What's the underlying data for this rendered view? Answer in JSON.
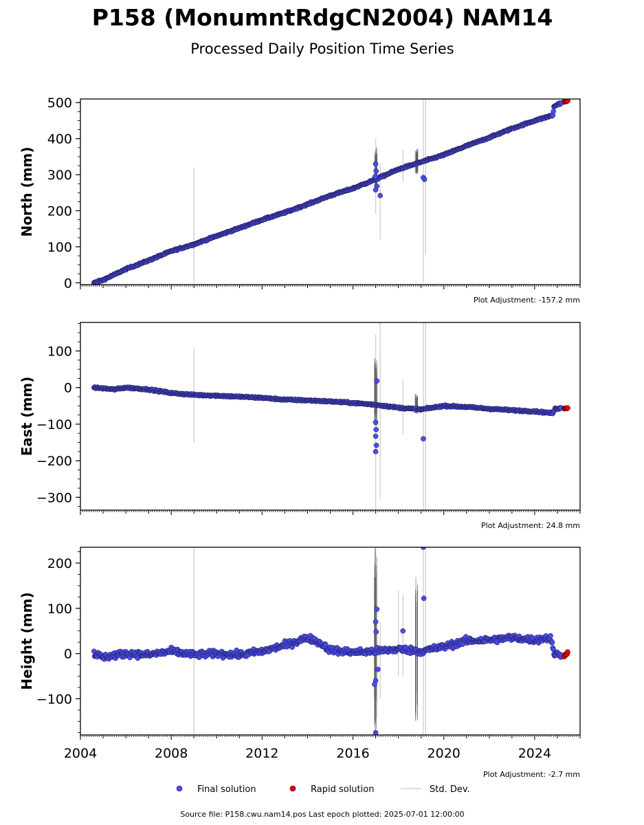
{
  "figure": {
    "title": "P158 (MonumntRdgCN2004) NAM14",
    "subtitle": "Processed Daily Position Time Series",
    "source_note": "Source file: P158.cwu.nam14.pos  Last epoch plotted: 2025-07-01 12:00:00"
  },
  "legend": {
    "final_label": "Final solution",
    "rapid_label": "Rapid solution",
    "std_label": "Std. Dev."
  },
  "colors": {
    "final": "#4b4bef",
    "final_edge": "#1a1a40",
    "rapid": "#e00000",
    "std": "#d0d0d0",
    "std_dark": "#555555"
  },
  "chart_data": [
    {
      "type": "scatter",
      "component": "north",
      "ylabel": "North (mm)",
      "adjustment": "Plot Adjustment: -157.2 mm",
      "xlim": [
        2004.0,
        2026.0
      ],
      "ylim": [
        -5,
        510
      ],
      "yticks": [
        0,
        100,
        200,
        300,
        400,
        500
      ],
      "yminor": 25,
      "final_series": [
        [
          2004.6,
          0
        ],
        [
          2005.0,
          8
        ],
        [
          2006.0,
          38
        ],
        [
          2007.0,
          62
        ],
        [
          2008.0,
          88
        ],
        [
          2009.0,
          107
        ],
        [
          2010.0,
          130
        ],
        [
          2011.0,
          152
        ],
        [
          2012.0,
          175
        ],
        [
          2013.0,
          195
        ],
        [
          2014.0,
          218
        ],
        [
          2015.0,
          242
        ],
        [
          2016.0,
          262
        ],
        [
          2017.0,
          287
        ],
        [
          2018.0,
          315
        ],
        [
          2019.0,
          335
        ],
        [
          2020.0,
          355
        ],
        [
          2021.0,
          380
        ],
        [
          2022.0,
          403
        ],
        [
          2023.0,
          428
        ],
        [
          2024.0,
          450
        ],
        [
          2024.8,
          465
        ],
        [
          2024.85,
          488
        ],
        [
          2025.0,
          495
        ],
        [
          2025.2,
          500
        ]
      ],
      "rapid_series": [
        [
          2025.3,
          502
        ],
        [
          2025.45,
          505
        ]
      ],
      "outliers": [
        [
          2017.0,
          330
        ],
        [
          2017.02,
          310
        ],
        [
          2016.98,
          295
        ],
        [
          2017.05,
          268
        ],
        [
          2017.0,
          258
        ],
        [
          2017.2,
          242
        ],
        [
          2019.1,
          292
        ],
        [
          2019.15,
          287
        ]
      ],
      "std_spikes": [
        [
          2009.0,
          0,
          320
        ],
        [
          2017.0,
          190,
          400
        ],
        [
          2017.2,
          120,
          330
        ],
        [
          2018.2,
          280,
          368
        ],
        [
          2019.1,
          0,
          510
        ],
        [
          2019.2,
          78,
          510
        ]
      ],
      "std_dense": [
        [
          2017.0,
          250,
          380
        ],
        [
          2018.8,
          300,
          372
        ]
      ]
    },
    {
      "type": "scatter",
      "component": "east",
      "ylabel": "East (mm)",
      "adjustment": "Plot Adjustment: 24.8 mm",
      "xlim": [
        2004.0,
        2026.0
      ],
      "ylim": [
        -335,
        178
      ],
      "yticks": [
        100,
        0,
        -100,
        -200,
        -300
      ],
      "yminor": 25,
      "final_series": [
        [
          2004.6,
          0
        ],
        [
          2005.5,
          -5
        ],
        [
          2006.0,
          0
        ],
        [
          2007.0,
          -5
        ],
        [
          2008.0,
          -15
        ],
        [
          2009.0,
          -20
        ],
        [
          2010.0,
          -22
        ],
        [
          2011.0,
          -25
        ],
        [
          2012.0,
          -28
        ],
        [
          2013.0,
          -33
        ],
        [
          2014.0,
          -35
        ],
        [
          2015.0,
          -38
        ],
        [
          2016.0,
          -42
        ],
        [
          2017.0,
          -47
        ],
        [
          2018.0,
          -55
        ],
        [
          2019.0,
          -60
        ],
        [
          2020.0,
          -50
        ],
        [
          2021.0,
          -53
        ],
        [
          2022.0,
          -58
        ],
        [
          2023.0,
          -62
        ],
        [
          2024.0,
          -65
        ],
        [
          2024.8,
          -70
        ],
        [
          2024.9,
          -58
        ],
        [
          2025.2,
          -56
        ]
      ],
      "rapid_series": [
        [
          2025.3,
          -57
        ],
        [
          2025.45,
          -56
        ]
      ],
      "outliers": [
        [
          2017.05,
          18
        ],
        [
          2017.0,
          -95
        ],
        [
          2017.02,
          -115
        ],
        [
          2017.0,
          -133
        ],
        [
          2017.03,
          -158
        ],
        [
          2017.0,
          -175
        ],
        [
          2019.1,
          -140
        ]
      ],
      "std_spikes": [
        [
          2009.0,
          -150,
          110
        ],
        [
          2017.0,
          -335,
          145
        ],
        [
          2017.2,
          -305,
          178
        ],
        [
          2018.2,
          -128,
          22
        ],
        [
          2019.1,
          -335,
          178
        ],
        [
          2019.2,
          -335,
          178
        ]
      ],
      "std_dense": [
        [
          2017.0,
          -110,
          80
        ],
        [
          2018.8,
          -75,
          -15
        ]
      ]
    },
    {
      "type": "scatter",
      "component": "up",
      "ylabel": "Height (mm)",
      "adjustment": "Plot Adjustment: -2.7 mm",
      "xlim": [
        2004.0,
        2026.0
      ],
      "ylim": [
        -180,
        235
      ],
      "yticks": [
        200,
        100,
        0,
        -100
      ],
      "yminor": 25,
      "final_series": [
        [
          2004.6,
          0
        ],
        [
          2005.0,
          -8
        ],
        [
          2006.0,
          0
        ],
        [
          2007.0,
          -3
        ],
        [
          2008.0,
          5
        ],
        [
          2009.0,
          -3
        ],
        [
          2010.0,
          0
        ],
        [
          2011.0,
          -3
        ],
        [
          2012.0,
          5
        ],
        [
          2013.0,
          18
        ],
        [
          2014.0,
          35
        ],
        [
          2014.5,
          25
        ],
        [
          2015.0,
          8
        ],
        [
          2016.0,
          3
        ],
        [
          2017.0,
          5
        ],
        [
          2018.0,
          10
        ],
        [
          2019.0,
          5
        ],
        [
          2020.0,
          15
        ],
        [
          2021.0,
          28
        ],
        [
          2022.0,
          30
        ],
        [
          2023.0,
          35
        ],
        [
          2024.0,
          30
        ],
        [
          2024.7,
          35
        ],
        [
          2024.85,
          0
        ],
        [
          2025.2,
          -3
        ]
      ],
      "rapid_series": [
        [
          2025.3,
          -5
        ],
        [
          2025.45,
          2
        ]
      ],
      "outliers": [
        [
          2017.05,
          98
        ],
        [
          2017.0,
          70
        ],
        [
          2017.02,
          48
        ],
        [
          2017.0,
          -60
        ],
        [
          2016.95,
          -68
        ],
        [
          2017.1,
          -35
        ],
        [
          2017.0,
          -175
        ],
        [
          2018.2,
          50
        ],
        [
          2019.1,
          235
        ],
        [
          2019.12,
          122
        ]
      ],
      "std_spikes": [
        [
          2009.0,
          -180,
          235
        ],
        [
          2017.0,
          -180,
          235
        ],
        [
          2017.2,
          -100,
          70
        ],
        [
          2018.0,
          -50,
          140
        ],
        [
          2018.2,
          -50,
          130
        ],
        [
          2019.1,
          -180,
          235
        ],
        [
          2019.2,
          -180,
          235
        ]
      ],
      "std_dense": [
        [
          2017.0,
          -180,
          235
        ],
        [
          2018.8,
          -160,
          170
        ]
      ]
    }
  ],
  "x_axis": {
    "tick_years": [
      "2004",
      "2008",
      "2012",
      "2016",
      "2020",
      "2024"
    ]
  }
}
